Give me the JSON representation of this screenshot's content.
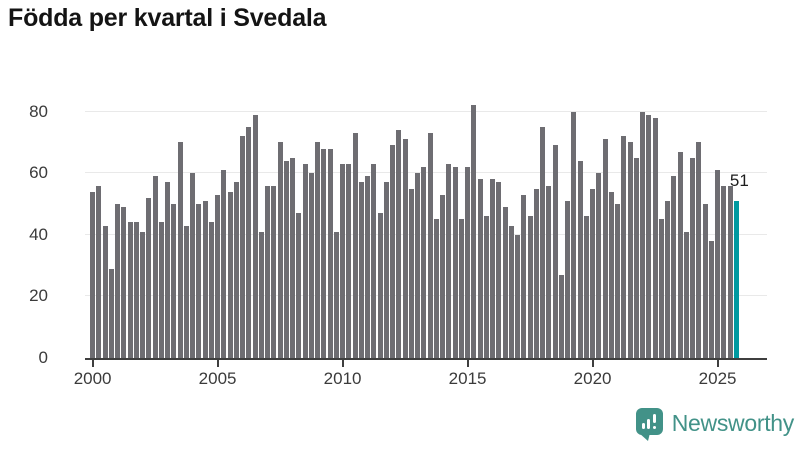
{
  "title": "Födda per kvartal i Svedala",
  "annotation": {
    "label": "51"
  },
  "branding": {
    "name": "Newsworthy",
    "icon": "bar-chart-speech-bubble-icon"
  },
  "colors": {
    "bar": "#6e6d72",
    "highlight": "#0099a0",
    "brand": "#429288",
    "title_text": "#141414",
    "axis_text": "#3b3b3b",
    "grid": "#e9e9e9",
    "baseline": "#3f3f3f"
  },
  "chart_data": {
    "type": "bar",
    "title": "Födda per kvartal i Svedala",
    "xlabel": "",
    "ylabel": "",
    "start_year": 2000,
    "quarters_per_year": 4,
    "x_tick_labels": [
      "2000",
      "2005",
      "2010",
      "2015",
      "2020",
      "2025"
    ],
    "x_tick_indices": [
      0,
      20,
      40,
      60,
      80,
      100
    ],
    "y_ticks": [
      0,
      20,
      40,
      60,
      80
    ],
    "ylim": [
      0,
      85
    ],
    "grid": "horizontal",
    "legend": "none",
    "highlight_last_bar": true,
    "last_bar_label": "51",
    "values": [
      54,
      56,
      43,
      29,
      50,
      49,
      44,
      44,
      41,
      52,
      59,
      44,
      57,
      50,
      70,
      43,
      60,
      50,
      51,
      44,
      53,
      61,
      54,
      57,
      72,
      75,
      79,
      41,
      56,
      56,
      70,
      64,
      65,
      47,
      63,
      60,
      70,
      68,
      68,
      41,
      63,
      63,
      73,
      57,
      59,
      63,
      47,
      57,
      69,
      74,
      71,
      55,
      60,
      62,
      73,
      45,
      53,
      63,
      62,
      45,
      62,
      82,
      58,
      46,
      58,
      57,
      49,
      43,
      40,
      53,
      46,
      55,
      75,
      56,
      69,
      27,
      51,
      80,
      64,
      46,
      55,
      60,
      71,
      54,
      50,
      72,
      70,
      65,
      80,
      79,
      78,
      45,
      51,
      59,
      67,
      41,
      65,
      70,
      50,
      38,
      61,
      56,
      56,
      51
    ]
  }
}
